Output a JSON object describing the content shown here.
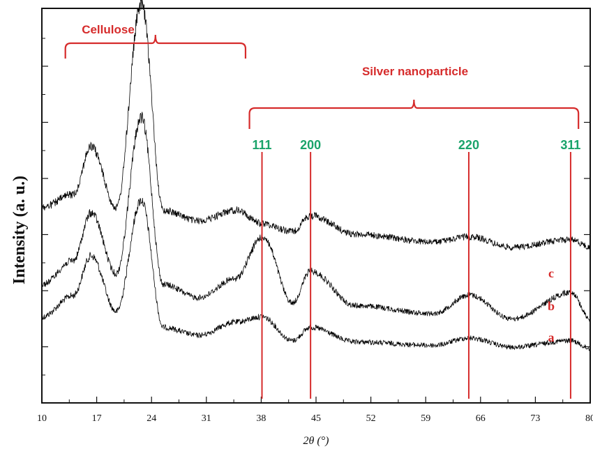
{
  "chart_data": {
    "type": "line",
    "title": "",
    "xlabel": "2θ (°)",
    "ylabel": "Intensity (a. u.)",
    "xlim": [
      10,
      80
    ],
    "x_ticks": [
      10,
      17,
      24,
      31,
      38,
      45,
      52,
      59,
      66,
      73,
      80
    ],
    "y_ticks_shown": false,
    "y_tick_count": 7,
    "grid": false,
    "series": [
      {
        "name": "a",
        "points": [
          [
            10,
            0.12
          ],
          [
            14,
            0.2
          ],
          [
            16.3,
            0.35
          ],
          [
            19.5,
            0.14
          ],
          [
            22.7,
            0.56
          ],
          [
            25.5,
            0.08
          ],
          [
            30,
            0.05
          ],
          [
            34.8,
            0.1
          ],
          [
            38.1,
            0.12
          ],
          [
            42,
            0.03
          ],
          [
            44.3,
            0.08
          ],
          [
            50,
            0.025
          ],
          [
            60,
            0.012
          ],
          [
            64.6,
            0.04
          ],
          [
            70,
            0.005
          ],
          [
            77.5,
            0.03
          ],
          [
            80,
            0.0
          ]
        ]
      },
      {
        "name": "b",
        "points": [
          [
            10,
            0.15
          ],
          [
            14,
            0.24
          ],
          [
            16.3,
            0.42
          ],
          [
            19.5,
            0.19
          ],
          [
            22.7,
            0.78
          ],
          [
            25.5,
            0.15
          ],
          [
            30,
            0.1
          ],
          [
            34.6,
            0.17
          ],
          [
            38.2,
            0.33
          ],
          [
            42,
            0.08
          ],
          [
            44.3,
            0.2
          ],
          [
            50,
            0.07
          ],
          [
            60,
            0.04
          ],
          [
            64.6,
            0.11
          ],
          [
            70,
            0.02
          ],
          [
            77.6,
            0.12
          ],
          [
            80,
            0.02
          ]
        ]
      },
      {
        "name": "c",
        "points": [
          [
            10,
            0.29
          ],
          [
            14,
            0.34
          ],
          [
            16.3,
            0.52
          ],
          [
            19.5,
            0.29
          ],
          [
            22.7,
            1.06
          ],
          [
            25.5,
            0.28
          ],
          [
            30,
            0.24
          ],
          [
            34.8,
            0.28
          ],
          [
            38.1,
            0.23
          ],
          [
            42,
            0.2
          ],
          [
            44.3,
            0.26
          ],
          [
            50,
            0.19
          ],
          [
            60,
            0.16
          ],
          [
            64.6,
            0.18
          ],
          [
            70,
            0.14
          ],
          [
            77.6,
            0.17
          ],
          [
            80,
            0.14
          ]
        ]
      }
    ],
    "reference_lines": [
      {
        "x": 38.1,
        "label": "111"
      },
      {
        "x": 44.3,
        "label": "200"
      },
      {
        "x": 64.5,
        "label": "220"
      },
      {
        "x": 77.5,
        "label": "311"
      }
    ],
    "annotations": [
      {
        "text": "Cellulose",
        "x_range": [
          13,
          36
        ]
      },
      {
        "text": "Silver nanoparticle",
        "x_range": [
          36.5,
          78.5
        ]
      }
    ],
    "colors": {
      "series": "#000000",
      "reference": "#d62b2b",
      "annotation": "#d62b2b",
      "plane_label": "#1aa36a"
    }
  }
}
